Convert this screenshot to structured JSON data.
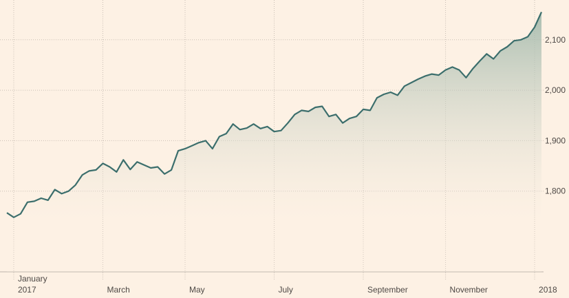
{
  "chart_data": {
    "type": "area",
    "categories": [
      null,
      null,
      null,
      null,
      null,
      null,
      null,
      null,
      null,
      null,
      null,
      null,
      null,
      null,
      null,
      null,
      null,
      null,
      null,
      null,
      null,
      null,
      null,
      null,
      null,
      null,
      null,
      null,
      null,
      null,
      null,
      null,
      null,
      null,
      null,
      null,
      null,
      null,
      null,
      null,
      null,
      null,
      null,
      null,
      null,
      null,
      null,
      null,
      null,
      null,
      null,
      null,
      null,
      null,
      null,
      null,
      null,
      null,
      null,
      null,
      null,
      null,
      null,
      null,
      null,
      null,
      null,
      null,
      null,
      null,
      null,
      null,
      null,
      null,
      null,
      null,
      null,
      null,
      null
    ],
    "values": [
      1757,
      1748,
      1755,
      1778,
      1780,
      1786,
      1782,
      1803,
      1795,
      1800,
      1812,
      1832,
      1840,
      1842,
      1855,
      1848,
      1838,
      1862,
      1843,
      1858,
      1852,
      1846,
      1848,
      1834,
      1842,
      1880,
      1884,
      1890,
      1896,
      1900,
      1884,
      1908,
      1914,
      1933,
      1922,
      1925,
      1933,
      1924,
      1928,
      1918,
      1920,
      1935,
      1952,
      1960,
      1958,
      1966,
      1968,
      1948,
      1952,
      1935,
      1944,
      1948,
      1962,
      1960,
      1985,
      1992,
      1996,
      1990,
      2008,
      2015,
      2022,
      2028,
      2032,
      2030,
      2040,
      2046,
      2040,
      2025,
      2043,
      2058,
      2072,
      2062,
      2078,
      2086,
      2098,
      2100,
      2106,
      2125,
      2155
    ],
    "color": "#3b6e6c",
    "xticks": [
      {
        "value": 1,
        "label": [
          "January",
          "2017"
        ]
      },
      {
        "value": 14,
        "label": [
          "March"
        ]
      },
      {
        "value": 26,
        "label": [
          "May"
        ]
      },
      {
        "value": 39,
        "label": [
          "July"
        ]
      },
      {
        "value": 52,
        "label": [
          "September"
        ]
      },
      {
        "value": 64,
        "label": [
          "November"
        ]
      },
      {
        "value": 77,
        "label": [
          "2018"
        ]
      }
    ],
    "ylim": [
      1640,
      2172
    ],
    "yticks": [
      {
        "value": 1800,
        "label": "1,800"
      },
      {
        "value": 1900,
        "label": "1,900"
      },
      {
        "value": 2000,
        "label": "2,000"
      },
      {
        "value": 2100,
        "label": "2,100"
      }
    ],
    "grid": true
  }
}
